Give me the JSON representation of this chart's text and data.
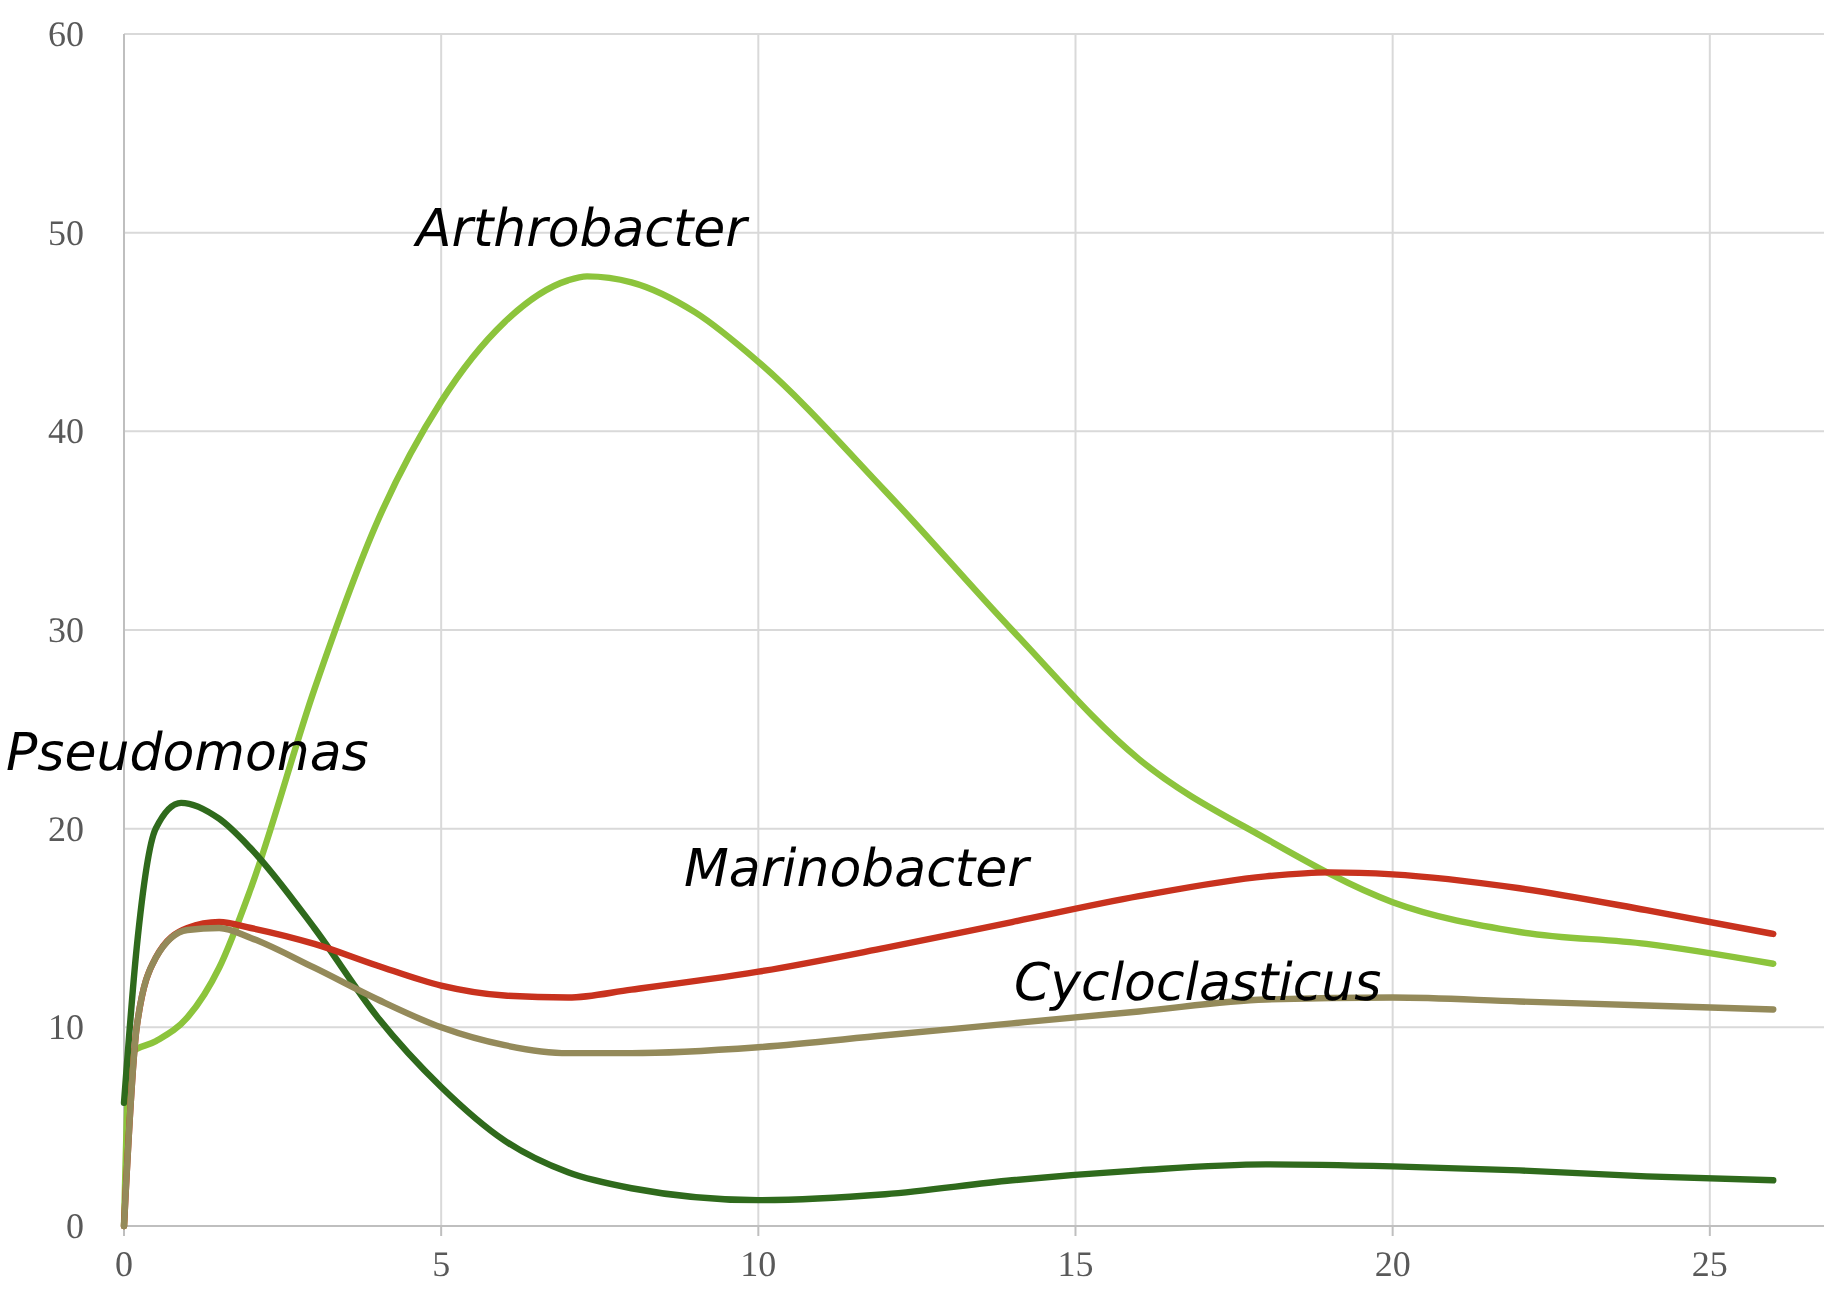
{
  "chart_data": {
    "type": "line",
    "xlim": [
      0,
      26.8
    ],
    "ylim": [
      0,
      60
    ],
    "xticks": [
      0,
      5,
      10,
      15,
      20,
      25
    ],
    "yticks": [
      0,
      10,
      20,
      30,
      40,
      50,
      60
    ],
    "grid": true,
    "legend": false,
    "marker": "none",
    "line_style": "solid",
    "series": [
      {
        "name": "Arthrobacter",
        "color": "#8cc43c",
        "x": [
          0,
          0.1,
          0.5,
          1,
          1.5,
          2,
          3,
          4,
          5,
          6,
          7,
          7.3,
          8,
          9,
          10,
          12,
          14,
          16,
          18,
          20,
          22,
          24,
          26
        ],
        "values": [
          0,
          8.7,
          9.3,
          10.5,
          13,
          17,
          27,
          35.5,
          41.5,
          45.5,
          47.6,
          47.8,
          47.5,
          46,
          43.5,
          37,
          30,
          23.5,
          19.5,
          16.3,
          14.8,
          14.2,
          13.2
        ]
      },
      {
        "name": "Pseudomonas",
        "color": "#2f6a1c",
        "x": [
          0,
          0.2,
          0.5,
          0.9,
          1.5,
          2,
          3,
          4,
          5,
          6,
          7,
          8,
          10,
          12,
          14,
          16,
          18,
          20,
          22,
          24,
          26
        ],
        "values": [
          6.2,
          14,
          20,
          21.3,
          20.5,
          19,
          15,
          10.5,
          7,
          4.3,
          2.7,
          1.9,
          1.3,
          1.6,
          2.3,
          2.8,
          3.1,
          3,
          2.8,
          2.5,
          2.3
        ]
      },
      {
        "name": "Marinobacter",
        "color": "#c8321e",
        "x": [
          0,
          0.2,
          0.5,
          1,
          1.5,
          2,
          3,
          4,
          5,
          6,
          7,
          8,
          10,
          12,
          14,
          16,
          18,
          19,
          20,
          22,
          24,
          26
        ],
        "values": [
          0,
          10,
          13.5,
          15,
          15.3,
          15,
          14.2,
          13.1,
          12.1,
          11.6,
          11.5,
          11.9,
          12.8,
          14,
          15.3,
          16.6,
          17.6,
          17.8,
          17.7,
          17,
          15.9,
          14.7
        ]
      },
      {
        "name": "Cycloclasticus",
        "color": "#948a5a",
        "x": [
          0,
          0.2,
          0.5,
          1,
          1.5,
          2,
          3,
          4,
          5,
          6,
          7,
          8,
          10,
          12,
          14,
          16,
          18,
          20,
          22,
          24,
          26
        ],
        "values": [
          0,
          10,
          13.5,
          14.9,
          15,
          14.5,
          13,
          11.4,
          10,
          9.1,
          8.7,
          8.7,
          9,
          9.6,
          10.2,
          10.8,
          11.4,
          11.5,
          11.3,
          11.1,
          10.9
        ]
      }
    ]
  }
}
